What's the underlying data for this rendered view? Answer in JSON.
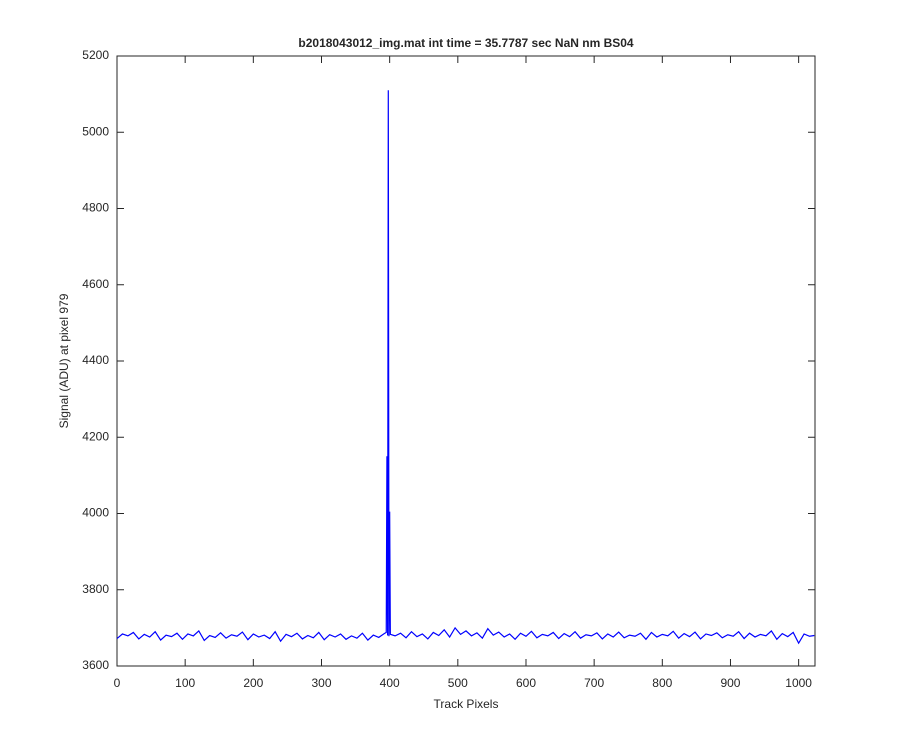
{
  "chart_data": {
    "type": "line",
    "title": "b2018043012_img.mat int time = 35.7787 sec  NaN nm BS04",
    "xlabel": "Track Pixels",
    "ylabel": "Signal (ADU) at pixel 979",
    "color": "#0000ff",
    "xlim": [
      0,
      1024
    ],
    "ylim": [
      3600,
      5200
    ],
    "xticks": [
      0,
      100,
      200,
      300,
      400,
      500,
      600,
      700,
      800,
      900,
      1000
    ],
    "yticks": [
      3600,
      3800,
      4000,
      4200,
      4400,
      4600,
      4800,
      5000,
      5200
    ],
    "grid": false,
    "x": [
      0,
      8,
      16,
      24,
      32,
      40,
      48,
      56,
      64,
      72,
      80,
      88,
      96,
      104,
      112,
      120,
      128,
      136,
      144,
      152,
      160,
      168,
      176,
      184,
      192,
      200,
      208,
      216,
      224,
      232,
      240,
      248,
      256,
      264,
      272,
      280,
      288,
      296,
      304,
      312,
      320,
      328,
      336,
      344,
      352,
      360,
      368,
      376,
      384,
      392,
      395,
      396,
      397,
      398,
      399,
      400,
      401,
      408,
      416,
      424,
      432,
      440,
      448,
      456,
      464,
      472,
      480,
      488,
      496,
      504,
      512,
      520,
      528,
      536,
      544,
      552,
      560,
      568,
      576,
      584,
      592,
      600,
      608,
      616,
      624,
      632,
      640,
      648,
      656,
      664,
      672,
      680,
      688,
      696,
      704,
      712,
      720,
      728,
      736,
      744,
      752,
      760,
      768,
      776,
      784,
      792,
      800,
      808,
      816,
      824,
      832,
      840,
      848,
      856,
      864,
      872,
      880,
      888,
      896,
      904,
      912,
      920,
      928,
      936,
      944,
      952,
      960,
      968,
      976,
      984,
      992,
      1000,
      1008,
      1016,
      1023
    ],
    "values": [
      3672,
      3684,
      3679,
      3688,
      3671,
      3683,
      3676,
      3690,
      3668,
      3681,
      3677,
      3686,
      3670,
      3684,
      3679,
      3692,
      3667,
      3680,
      3675,
      3687,
      3673,
      3682,
      3678,
      3689,
      3669,
      3684,
      3676,
      3681,
      3672,
      3690,
      3665,
      3683,
      3677,
      3686,
      3671,
      3680,
      3674,
      3688,
      3669,
      3682,
      3676,
      3684,
      3670,
      3679,
      3673,
      3686,
      3668,
      3681,
      3675,
      3685,
      3688,
      4150,
      3680,
      5110,
      3678,
      4005,
      3683,
      3679,
      3686,
      3674,
      3690,
      3677,
      3684,
      3671,
      3688,
      3680,
      3695,
      3676,
      3700,
      3683,
      3692,
      3679,
      3687,
      3673,
      3698,
      3681,
      3689,
      3676,
      3684,
      3670,
      3686,
      3678,
      3691,
      3674,
      3683,
      3679,
      3688,
      3672,
      3685,
      3677,
      3690,
      3673,
      3682,
      3679,
      3687,
      3671,
      3684,
      3676,
      3689,
      3674,
      3681,
      3678,
      3686,
      3670,
      3688,
      3676,
      3683,
      3679,
      3691,
      3673,
      3685,
      3677,
      3689,
      3671,
      3684,
      3680,
      3687,
      3674,
      3682,
      3678,
      3690,
      3672,
      3686,
      3676,
      3683,
      3679,
      3692,
      3670,
      3685,
      3677,
      3688,
      3660,
      3684,
      3678,
      3680
    ]
  }
}
